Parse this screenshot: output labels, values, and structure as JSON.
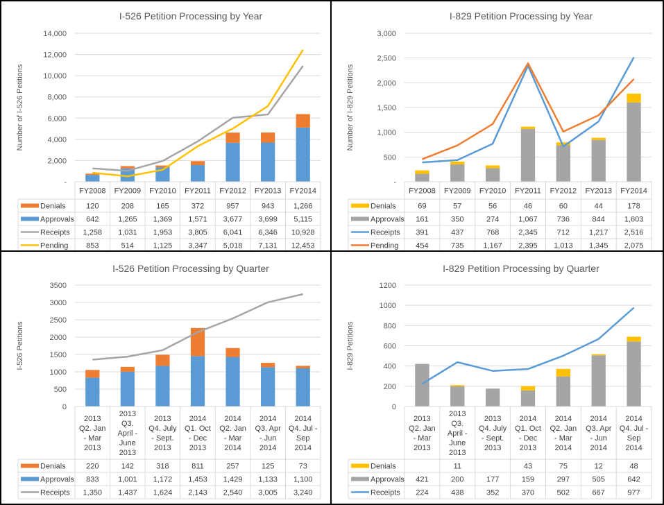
{
  "chart_data": [
    {
      "type": "bar",
      "stacked": true,
      "title": "I-526 Petition Processing by Year",
      "ylabel": "Number  of I-526 Petitions",
      "xlabel": "",
      "ylim": [
        0,
        14000
      ],
      "yticks": [
        "-",
        "2,000",
        "4,000",
        "6,000",
        "8,000",
        "10,000",
        "12,000",
        "14,000"
      ],
      "ytick_values": [
        0,
        2000,
        4000,
        6000,
        8000,
        10000,
        12000,
        14000
      ],
      "grid": true,
      "legend": "data-table",
      "categories": [
        "FY2008",
        "FY2009",
        "FY2010",
        "FY2011",
        "FY2012",
        "FY2013",
        "FY2014"
      ],
      "bar_series": [
        {
          "name": "Approvals",
          "color": "#5b9bd5",
          "values": [
            642,
            1265,
            1369,
            1571,
            3677,
            3699,
            5115
          ],
          "labels": [
            "642",
            "1,265",
            "1,369",
            "1,571",
            "3,677",
            "3,699",
            "5,115"
          ]
        },
        {
          "name": "Denials",
          "color": "#ed7d31",
          "values": [
            120,
            208,
            165,
            372,
            957,
            943,
            1266
          ],
          "labels": [
            "120",
            "208",
            "165",
            "372",
            "957",
            "943",
            "1,266"
          ]
        }
      ],
      "line_series": [
        {
          "name": "Receipts",
          "color": "#a5a5a5",
          "values": [
            1258,
            1031,
            1953,
            3805,
            6041,
            6346,
            10928
          ],
          "labels": [
            "1,258",
            "1,031",
            "1,953",
            "3,805",
            "6,041",
            "6,346",
            "10,928"
          ]
        },
        {
          "name": "Pending",
          "color": "#ffc000",
          "values": [
            853,
            514,
            1125,
            3347,
            5018,
            7131,
            12453
          ],
          "labels": [
            "853",
            "514",
            "1,125",
            "3,347",
            "5,018",
            "7,131",
            "12,453"
          ]
        }
      ],
      "table_order": [
        "Denials",
        "Approvals",
        "Receipts",
        "Pending"
      ]
    },
    {
      "type": "bar",
      "stacked": true,
      "title": "I-829 Petition Processing by Year",
      "ylabel": "Number  of I-829 Petitions",
      "xlabel": "",
      "ylim": [
        0,
        3000
      ],
      "yticks": [
        "-",
        "500",
        "1,000",
        "1,500",
        "2,000",
        "2,500",
        "3,000"
      ],
      "ytick_values": [
        0,
        500,
        1000,
        1500,
        2000,
        2500,
        3000
      ],
      "grid": true,
      "legend": "data-table",
      "categories": [
        "FY2008",
        "FY2009",
        "FY2010",
        "FY2011",
        "FY2012",
        "FY2013",
        "FY2014"
      ],
      "bar_series": [
        {
          "name": "Approvals",
          "color": "#a5a5a5",
          "values": [
            161,
            350,
            274,
            1067,
            736,
            844,
            1603
          ],
          "labels": [
            "161",
            "350",
            "274",
            "1,067",
            "736",
            "844",
            "1,603"
          ]
        },
        {
          "name": "Denials",
          "color": "#ffc000",
          "values": [
            69,
            57,
            56,
            46,
            60,
            44,
            178
          ],
          "labels": [
            "69",
            "57",
            "56",
            "46",
            "60",
            "44",
            "178"
          ]
        }
      ],
      "line_series": [
        {
          "name": "Receipts",
          "color": "#5b9bd5",
          "values": [
            391,
            437,
            768,
            2345,
            712,
            1217,
            2516
          ],
          "labels": [
            "391",
            "437",
            "768",
            "2,345",
            "712",
            "1,217",
            "2,516"
          ]
        },
        {
          "name": "Pending",
          "color": "#ed7d31",
          "values": [
            454,
            735,
            1167,
            2395,
            1013,
            1345,
            2075
          ],
          "labels": [
            "454",
            "735",
            "1,167",
            "2,395",
            "1,013",
            "1,345",
            "2,075"
          ]
        }
      ],
      "table_order": [
        "Denials",
        "Approvals",
        "Receipts",
        "Pending"
      ]
    },
    {
      "type": "bar",
      "stacked": true,
      "title": "I-526 Petition Processing by Quarter",
      "ylabel": "I-526 Petitions",
      "xlabel": "",
      "ylim": [
        0,
        3500
      ],
      "yticks": [
        "0",
        "500",
        "1000",
        "1500",
        "2000",
        "2500",
        "3000",
        "3500"
      ],
      "ytick_values": [
        0,
        500,
        1000,
        1500,
        2000,
        2500,
        3000,
        3500
      ],
      "grid": true,
      "legend": "data-table",
      "categories": [
        [
          "2013",
          "Q2. Jan",
          "- Mar",
          "2013"
        ],
        [
          "2013",
          "Q3.",
          "April -",
          "June",
          "2013"
        ],
        [
          "2013",
          "Q4. July",
          "- Sept.",
          "2013"
        ],
        [
          "2014",
          "Q1. Oct",
          "- Dec",
          "2013"
        ],
        [
          "2014",
          "Q2. Jan",
          "- Mar",
          "2014"
        ],
        [
          "2014",
          "Q3. Apr",
          "- Jun",
          "2014"
        ],
        [
          "2014",
          "Q4. Jul -",
          "Sep",
          "2014"
        ]
      ],
      "bar_series": [
        {
          "name": "Approvals",
          "color": "#5b9bd5",
          "values": [
            833,
            1001,
            1172,
            1453,
            1429,
            1133,
            1100
          ],
          "labels": [
            "833",
            "1,001",
            "1,172",
            "1,453",
            "1,429",
            "1,133",
            "1,100"
          ]
        },
        {
          "name": "Denials",
          "color": "#ed7d31",
          "values": [
            220,
            142,
            318,
            811,
            257,
            125,
            73
          ],
          "labels": [
            "220",
            "142",
            "318",
            "811",
            "257",
            "125",
            "73"
          ]
        }
      ],
      "line_series": [
        {
          "name": "Receipts",
          "color": "#a5a5a5",
          "values": [
            1350,
            1437,
            1624,
            2143,
            2540,
            3005,
            3240
          ],
          "labels": [
            "1,350",
            "1,437",
            "1,624",
            "2,143",
            "2,540",
            "3,005",
            "3,240"
          ]
        }
      ],
      "table_order": [
        "Denials",
        "Approvals",
        "Receipts"
      ]
    },
    {
      "type": "bar",
      "stacked": true,
      "title": "I-829 Petition Processing by Quarter",
      "ylabel": "I-829 Petitions",
      "xlabel": "",
      "ylim": [
        0,
        1200
      ],
      "yticks": [
        "0",
        "200",
        "400",
        "600",
        "800",
        "1000",
        "1200"
      ],
      "ytick_values": [
        0,
        200,
        400,
        600,
        800,
        1000,
        1200
      ],
      "grid": true,
      "legend": "data-table",
      "categories": [
        [
          "2013",
          "Q2. Jan",
          "- Mar",
          "2013"
        ],
        [
          "2013",
          "Q3.",
          "April -",
          "June",
          "2013"
        ],
        [
          "2013",
          "Q4. July",
          "- Sept.",
          "2013"
        ],
        [
          "2014",
          "Q1. Oct",
          "- Dec",
          "2013"
        ],
        [
          "2014",
          "Q2. Jan",
          "- Mar",
          "2014"
        ],
        [
          "2014",
          "Q3. Apr",
          "- Jun",
          "2014"
        ],
        [
          "2014",
          "Q4. Jul -",
          "Sep",
          "2014"
        ]
      ],
      "bar_series": [
        {
          "name": "Approvals",
          "color": "#a5a5a5",
          "values": [
            421,
            200,
            177,
            159,
            297,
            505,
            642
          ],
          "labels": [
            "421",
            "200",
            "177",
            "159",
            "297",
            "505",
            "642"
          ]
        },
        {
          "name": "Denials",
          "color": "#ffc000",
          "values": [
            0,
            11,
            0,
            43,
            75,
            12,
            48
          ],
          "labels": [
            "",
            "11",
            "",
            "43",
            "75",
            "12",
            "48"
          ]
        }
      ],
      "line_series": [
        {
          "name": "Receipts",
          "color": "#5b9bd5",
          "values": [
            224,
            438,
            352,
            370,
            502,
            667,
            977
          ],
          "labels": [
            "224",
            "438",
            "352",
            "370",
            "502",
            "667",
            "977"
          ]
        }
      ],
      "table_order": [
        "Denials",
        "Approvals",
        "Receipts"
      ]
    }
  ]
}
